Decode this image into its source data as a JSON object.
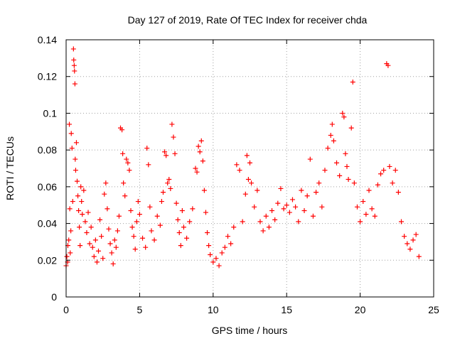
{
  "chart_data": {
    "type": "scatter",
    "title": "Day 127 of 2019, Rate Of TEC Index for receiver chda",
    "xlabel": "GPS time / hours",
    "ylabel": "ROTI / TECUs",
    "xlim": [
      0,
      25
    ],
    "ylim": [
      0,
      0.14
    ],
    "xticks": [
      "0",
      "5",
      "10",
      "15",
      "20",
      "25"
    ],
    "yticks": [
      "0",
      "0.02",
      "0.04",
      "0.06",
      "0.08",
      "0.1",
      "0.12",
      "0.14"
    ],
    "grid": true,
    "marker": "plus",
    "color": "#ff0000",
    "series": [
      {
        "points": [
          [
            0.0,
            0.017
          ],
          [
            0.05,
            0.022
          ],
          [
            0.1,
            0.019
          ],
          [
            0.12,
            0.028
          ],
          [
            0.18,
            0.031
          ],
          [
            0.22,
            0.094
          ],
          [
            0.25,
            0.048
          ],
          [
            0.28,
            0.024
          ],
          [
            0.32,
            0.036
          ],
          [
            0.35,
            0.089
          ],
          [
            0.4,
            0.081
          ],
          [
            0.45,
            0.052
          ],
          [
            0.5,
            0.135
          ],
          [
            0.52,
            0.129
          ],
          [
            0.55,
            0.126
          ],
          [
            0.57,
            0.123
          ],
          [
            0.6,
            0.116
          ],
          [
            0.62,
            0.075
          ],
          [
            0.65,
            0.069
          ],
          [
            0.7,
            0.084
          ],
          [
            0.75,
            0.063
          ],
          [
            0.8,
            0.055
          ],
          [
            0.85,
            0.047
          ],
          [
            0.9,
            0.038
          ],
          [
            0.95,
            0.028
          ],
          [
            1.0,
            0.06
          ],
          [
            1.05,
            0.052
          ],
          [
            1.1,
            0.045
          ],
          [
            1.2,
            0.058
          ],
          [
            1.3,
            0.041
          ],
          [
            1.4,
            0.035
          ],
          [
            1.5,
            0.046
          ],
          [
            1.6,
            0.029
          ],
          [
            1.7,
            0.038
          ],
          [
            1.8,
            0.027
          ],
          [
            1.9,
            0.022
          ],
          [
            2.0,
            0.031
          ],
          [
            2.1,
            0.019
          ],
          [
            2.2,
            0.025
          ],
          [
            2.3,
            0.042
          ],
          [
            2.4,
            0.033
          ],
          [
            2.5,
            0.021
          ],
          [
            2.6,
            0.056
          ],
          [
            2.7,
            0.062
          ],
          [
            2.8,
            0.048
          ],
          [
            2.9,
            0.037
          ],
          [
            3.0,
            0.029
          ],
          [
            3.1,
            0.024
          ],
          [
            3.2,
            0.018
          ],
          [
            3.3,
            0.031
          ],
          [
            3.4,
            0.027
          ],
          [
            3.5,
            0.036
          ],
          [
            3.6,
            0.044
          ],
          [
            3.7,
            0.092
          ],
          [
            3.8,
            0.091
          ],
          [
            3.85,
            0.078
          ],
          [
            3.9,
            0.062
          ],
          [
            4.0,
            0.055
          ],
          [
            4.1,
            0.075
          ],
          [
            4.2,
            0.073
          ],
          [
            4.3,
            0.069
          ],
          [
            4.4,
            0.047
          ],
          [
            4.5,
            0.038
          ],
          [
            4.6,
            0.033
          ],
          [
            4.7,
            0.026
          ],
          [
            4.8,
            0.041
          ],
          [
            4.9,
            0.052
          ],
          [
            5.0,
            0.045
          ],
          [
            5.2,
            0.032
          ],
          [
            5.4,
            0.027
          ],
          [
            5.5,
            0.081
          ],
          [
            5.6,
            0.072
          ],
          [
            5.7,
            0.049
          ],
          [
            5.8,
            0.036
          ],
          [
            6.0,
            0.031
          ],
          [
            6.2,
            0.044
          ],
          [
            6.4,
            0.039
          ],
          [
            6.5,
            0.052
          ],
          [
            6.6,
            0.057
          ],
          [
            6.7,
            0.079
          ],
          [
            6.8,
            0.077
          ],
          [
            6.9,
            0.062
          ],
          [
            7.0,
            0.064
          ],
          [
            7.1,
            0.059
          ],
          [
            7.2,
            0.094
          ],
          [
            7.3,
            0.087
          ],
          [
            7.4,
            0.078
          ],
          [
            7.5,
            0.051
          ],
          [
            7.6,
            0.042
          ],
          [
            7.7,
            0.035
          ],
          [
            7.8,
            0.028
          ],
          [
            7.9,
            0.047
          ],
          [
            8.0,
            0.038
          ],
          [
            8.2,
            0.032
          ],
          [
            8.4,
            0.041
          ],
          [
            8.6,
            0.048
          ],
          [
            8.8,
            0.07
          ],
          [
            8.9,
            0.068
          ],
          [
            9.0,
            0.082
          ],
          [
            9.1,
            0.079
          ],
          [
            9.2,
            0.085
          ],
          [
            9.3,
            0.074
          ],
          [
            9.4,
            0.058
          ],
          [
            9.5,
            0.046
          ],
          [
            9.6,
            0.035
          ],
          [
            9.7,
            0.028
          ],
          [
            9.8,
            0.023
          ],
          [
            10.0,
            0.019
          ],
          [
            10.2,
            0.021
          ],
          [
            10.4,
            0.017
          ],
          [
            10.6,
            0.024
          ],
          [
            10.8,
            0.027
          ],
          [
            11.0,
            0.033
          ],
          [
            11.2,
            0.029
          ],
          [
            11.4,
            0.038
          ],
          [
            11.6,
            0.072
          ],
          [
            11.8,
            0.069
          ],
          [
            12.0,
            0.041
          ],
          [
            12.2,
            0.056
          ],
          [
            12.3,
            0.077
          ],
          [
            12.4,
            0.064
          ],
          [
            12.5,
            0.073
          ],
          [
            12.6,
            0.062
          ],
          [
            12.8,
            0.049
          ],
          [
            13.0,
            0.058
          ],
          [
            13.2,
            0.041
          ],
          [
            13.4,
            0.036
          ],
          [
            13.6,
            0.044
          ],
          [
            13.8,
            0.038
          ],
          [
            14.0,
            0.047
          ],
          [
            14.2,
            0.042
          ],
          [
            14.4,
            0.051
          ],
          [
            14.6,
            0.059
          ],
          [
            14.8,
            0.048
          ],
          [
            15.0,
            0.05
          ],
          [
            15.2,
            0.046
          ],
          [
            15.4,
            0.053
          ],
          [
            15.6,
            0.049
          ],
          [
            15.8,
            0.041
          ],
          [
            16.0,
            0.058
          ],
          [
            16.2,
            0.047
          ],
          [
            16.4,
            0.055
          ],
          [
            16.6,
            0.075
          ],
          [
            16.8,
            0.044
          ],
          [
            17.0,
            0.057
          ],
          [
            17.2,
            0.062
          ],
          [
            17.4,
            0.049
          ],
          [
            17.6,
            0.069
          ],
          [
            17.8,
            0.081
          ],
          [
            18.0,
            0.088
          ],
          [
            18.1,
            0.094
          ],
          [
            18.2,
            0.085
          ],
          [
            18.4,
            0.073
          ],
          [
            18.6,
            0.066
          ],
          [
            18.8,
            0.1
          ],
          [
            18.9,
            0.098
          ],
          [
            19.0,
            0.078
          ],
          [
            19.1,
            0.071
          ],
          [
            19.2,
            0.064
          ],
          [
            19.4,
            0.092
          ],
          [
            19.5,
            0.117
          ],
          [
            19.6,
            0.062
          ],
          [
            19.8,
            0.049
          ],
          [
            20.0,
            0.041
          ],
          [
            20.2,
            0.052
          ],
          [
            20.4,
            0.045
          ],
          [
            20.6,
            0.058
          ],
          [
            20.8,
            0.048
          ],
          [
            21.0,
            0.044
          ],
          [
            21.2,
            0.061
          ],
          [
            21.4,
            0.067
          ],
          [
            21.6,
            0.069
          ],
          [
            21.8,
            0.127
          ],
          [
            21.9,
            0.126
          ],
          [
            22.0,
            0.071
          ],
          [
            22.2,
            0.062
          ],
          [
            22.4,
            0.069
          ],
          [
            22.6,
            0.057
          ],
          [
            22.8,
            0.041
          ],
          [
            23.0,
            0.033
          ],
          [
            23.2,
            0.029
          ],
          [
            23.4,
            0.026
          ],
          [
            23.6,
            0.031
          ],
          [
            23.8,
            0.034
          ],
          [
            24.0,
            0.022
          ]
        ]
      }
    ]
  }
}
